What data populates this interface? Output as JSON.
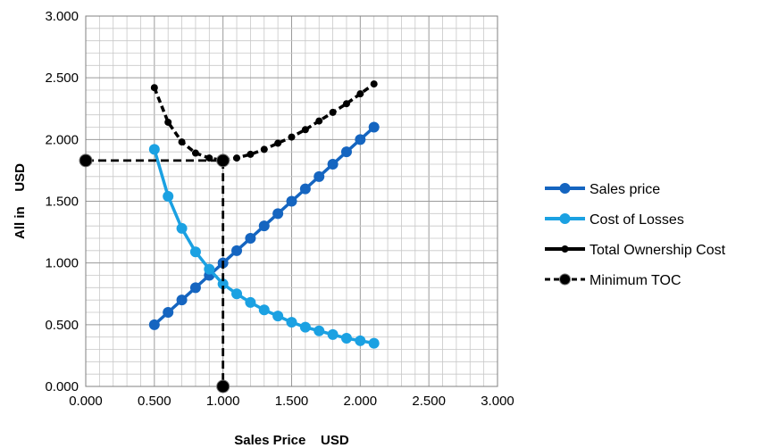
{
  "chart_data": {
    "type": "line",
    "title": "",
    "xlabel": "Sales Price    USD",
    "ylabel": "All in    USD",
    "xlim": [
      0,
      3
    ],
    "ylim": [
      0,
      3
    ],
    "x_ticks": [
      "0.000",
      "0.500",
      "1.000",
      "1.500",
      "2.000",
      "2.500",
      "3.000"
    ],
    "y_ticks": [
      "0.000",
      "0.500",
      "1.000",
      "1.500",
      "2.000",
      "2.500",
      "3.000"
    ],
    "grid": true,
    "minor_grid": true,
    "legend_position": "right",
    "series": [
      {
        "name": "Sales price",
        "color": "#1565c0",
        "style": "solid",
        "x": [
          0.5,
          0.6,
          0.7,
          0.8,
          0.9,
          1.0,
          1.1,
          1.2,
          1.3,
          1.4,
          1.5,
          1.6,
          1.7,
          1.8,
          1.9,
          2.0,
          2.1
        ],
        "y": [
          0.5,
          0.6,
          0.7,
          0.8,
          0.9,
          1.0,
          1.1,
          1.2,
          1.3,
          1.4,
          1.5,
          1.6,
          1.7,
          1.8,
          1.9,
          2.0,
          2.1
        ]
      },
      {
        "name": "Cost of Losses",
        "color": "#1ba1e2",
        "style": "solid",
        "x": [
          0.5,
          0.6,
          0.7,
          0.8,
          0.9,
          1.0,
          1.1,
          1.2,
          1.3,
          1.4,
          1.5,
          1.6,
          1.7,
          1.8,
          1.9,
          2.0,
          2.1
        ],
        "y": [
          1.92,
          1.54,
          1.28,
          1.09,
          0.95,
          0.83,
          0.75,
          0.68,
          0.62,
          0.57,
          0.52,
          0.48,
          0.45,
          0.42,
          0.39,
          0.37,
          0.35
        ]
      },
      {
        "name": "Total Ownership Cost",
        "color": "#000000",
        "style": "dashed",
        "x": [
          0.5,
          0.6,
          0.7,
          0.8,
          0.9,
          1.0,
          1.1,
          1.2,
          1.3,
          1.4,
          1.5,
          1.6,
          1.7,
          1.8,
          1.9,
          2.0,
          2.1
        ],
        "y": [
          2.42,
          2.14,
          1.98,
          1.89,
          1.85,
          1.83,
          1.85,
          1.88,
          1.92,
          1.97,
          2.02,
          2.08,
          2.15,
          2.22,
          2.29,
          2.37,
          2.45
        ]
      },
      {
        "name": "Minimum TOC",
        "color": "#000000",
        "style": "dashed",
        "x": [
          0.0,
          1.0,
          1.0
        ],
        "y": [
          1.83,
          1.83,
          0.0
        ]
      }
    ]
  }
}
